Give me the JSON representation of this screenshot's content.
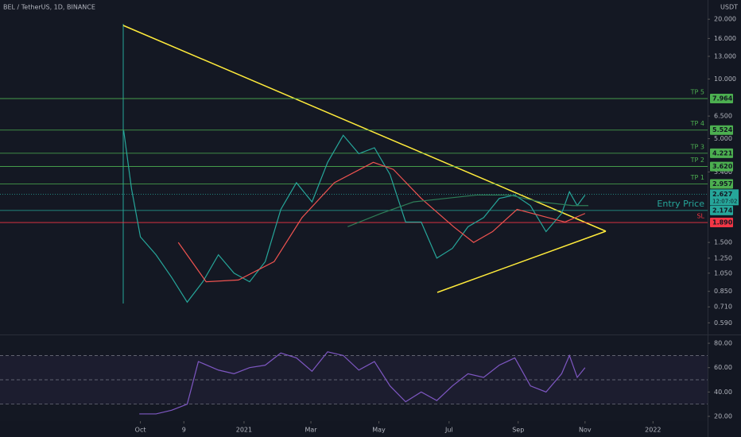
{
  "chart_data": [
    {
      "type": "line",
      "title": "BEL / TetherUS, 1D, BINANCE",
      "unit": "USDT",
      "log_scale": true,
      "xlim": [
        -126,
        509
      ],
      "ylim": [
        0.52,
        25
      ],
      "yticks": [
        {
          "value": 20,
          "label": "20.000"
        },
        {
          "value": 16,
          "label": "16.000"
        },
        {
          "value": 13,
          "label": "13.000"
        },
        {
          "value": 10,
          "label": "10.000"
        },
        {
          "value": 6.5,
          "label": "6.500"
        },
        {
          "value": 5,
          "label": "5.000"
        },
        {
          "value": 3.4,
          "label": "3.400"
        },
        {
          "value": 1.5,
          "label": "1.500"
        },
        {
          "value": 1.25,
          "label": "1.250"
        },
        {
          "value": 1.05,
          "label": "1.050"
        },
        {
          "value": 0.85,
          "label": "0.850"
        },
        {
          "value": 0.71,
          "label": "0.710"
        },
        {
          "value": 0.59,
          "label": "0.590"
        }
      ],
      "series": [
        {
          "color": "#26a69a",
          "x": [
            -15,
            -8,
            0,
            14,
            28,
            42,
            56,
            70,
            84,
            98,
            112,
            126,
            140,
            154,
            168,
            182,
            196,
            210,
            224,
            238,
            252,
            266,
            280,
            294,
            308,
            322,
            336,
            350,
            364,
            378,
            385,
            392,
            399
          ],
          "values": [
            5.5,
            2.8,
            1.6,
            1.3,
            1.0,
            0.75,
            0.95,
            1.3,
            1.05,
            0.95,
            1.2,
            2.2,
            3.0,
            2.4,
            3.8,
            5.2,
            4.2,
            4.5,
            3.3,
            1.9,
            1.9,
            1.25,
            1.4,
            1.8,
            2.0,
            2.5,
            2.6,
            2.3,
            1.7,
            2.1,
            2.7,
            2.3,
            2.6
          ]
        },
        {
          "color": "#ef5350",
          "x": [
            34,
            59,
            88,
            120,
            145,
            174,
            209,
            227,
            252,
            281,
            299,
            316,
            338,
            366,
            381,
            399
          ],
          "values": [
            1.5,
            0.95,
            0.97,
            1.2,
            2.0,
            3.0,
            3.8,
            3.5,
            2.5,
            1.8,
            1.5,
            1.7,
            2.2,
            2.0,
            1.9,
            2.1
          ]
        },
        {
          "color": "#2e7d57",
          "x": [
            186,
            216,
            245,
            274,
            302,
            331,
            359,
            388,
            402
          ],
          "values": [
            1.8,
            2.1,
            2.4,
            2.5,
            2.6,
            2.6,
            2.4,
            2.3,
            2.3
          ]
        }
      ],
      "levels": [
        {
          "name": "TP 5",
          "value": 7.964,
          "label": "7.964",
          "color": "#4caf50"
        },
        {
          "name": "TP 4",
          "value": 5.524,
          "label": "5.524",
          "color": "#4caf50"
        },
        {
          "name": "TP 3",
          "value": 4.221,
          "label": "4.221",
          "color": "#4caf50"
        },
        {
          "name": "TP 2",
          "value": 3.62,
          "label": "3.620",
          "color": "#4caf50"
        },
        {
          "name": "TP 1",
          "value": 2.957,
          "label": "2.957",
          "color": "#4caf50"
        },
        {
          "name": "Entry Price",
          "value": 2.174,
          "label": "2.174",
          "color": "#26a69a"
        },
        {
          "name": "SL",
          "value": 1.89,
          "label": "1.890",
          "color": "#f23645"
        }
      ],
      "last_price": {
        "value": 2.627,
        "countdown": "12:07:02",
        "color": "#26a69a"
      }
    },
    {
      "type": "line",
      "xlim": [
        -126,
        509
      ],
      "ylim": [
        16.1,
        85.9
      ],
      "yticks": [
        {
          "value": 80,
          "label": "80.00"
        },
        {
          "value": 60,
          "label": "60.00"
        },
        {
          "value": 40,
          "label": "40.00"
        },
        {
          "value": 20,
          "label": "20.00"
        }
      ],
      "bands": [
        30,
        50,
        70
      ],
      "xticks": [
        {
          "value": 0,
          "label": "Oct"
        },
        {
          "value": 39,
          "label": "9"
        },
        {
          "value": 93,
          "label": "2021"
        },
        {
          "value": 153,
          "label": "Mar"
        },
        {
          "value": 214,
          "label": "May"
        },
        {
          "value": 277,
          "label": "Jul"
        },
        {
          "value": 339,
          "label": "Sep"
        },
        {
          "value": 399,
          "label": "Nov"
        },
        {
          "value": 460,
          "label": "2022"
        }
      ],
      "series": [
        {
          "color": "#7e57c2",
          "x": [
            -1,
            14,
            28,
            42,
            52,
            70,
            84,
            98,
            112,
            126,
            140,
            154,
            168,
            182,
            196,
            210,
            224,
            238,
            252,
            266,
            280,
            294,
            308,
            322,
            336,
            350,
            364,
            378,
            385,
            392,
            399
          ],
          "values": [
            22,
            22,
            25,
            30,
            65,
            58,
            55,
            60,
            62,
            72,
            68,
            57,
            73,
            70,
            58,
            65,
            45,
            32,
            40,
            33,
            45,
            55,
            52,
            62,
            68,
            45,
            40,
            55,
            70,
            52,
            60
          ]
        }
      ]
    }
  ]
}
